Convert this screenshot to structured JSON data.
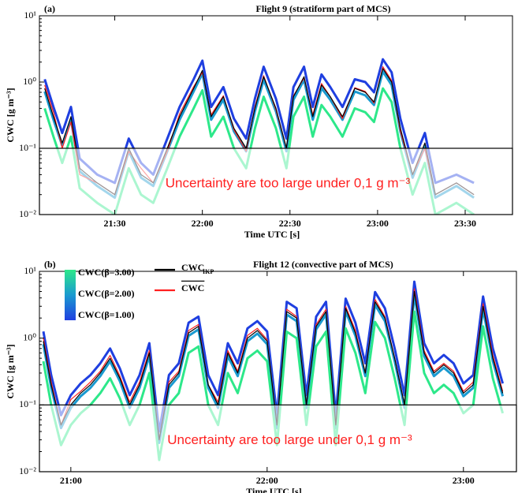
{
  "chart_data": [
    {
      "type": "line",
      "panel": "(a)",
      "title": "Flight 9  (stratiform part of MCS)",
      "xlabel": "Time UTC [s]",
      "ylabel": "CWC [g m⁻³]",
      "annotation": "Uncertainty are too large under 0,1 g  m⁻³",
      "threshold": 0.1,
      "yscale": "log",
      "legend": false,
      "xlim": [
        21.07,
        23.77
      ],
      "xticks": [
        {
          "value": 21.5,
          "label": "21:30"
        },
        {
          "value": 22.0,
          "label": "22:00"
        },
        {
          "value": 22.5,
          "label": "22:30"
        },
        {
          "value": 23.0,
          "label": "23:00"
        },
        {
          "value": 23.5,
          "label": "23:30"
        }
      ],
      "ylim": [
        0.01,
        10
      ],
      "yticks": [
        {
          "value": 0.01,
          "label": "10⁻²"
        },
        {
          "value": 0.1,
          "label": "10⁻¹"
        },
        {
          "value": 1,
          "label": "10⁰"
        },
        {
          "value": 10,
          "label": "10¹"
        }
      ],
      "x": [
        21.1,
        21.15,
        21.2,
        21.25,
        21.3,
        21.4,
        21.5,
        21.58,
        21.65,
        21.72,
        21.8,
        21.87,
        21.95,
        22.0,
        22.05,
        22.12,
        22.18,
        22.25,
        22.3,
        22.35,
        22.42,
        22.48,
        22.52,
        22.58,
        22.63,
        22.68,
        22.73,
        22.8,
        22.87,
        22.93,
        22.98,
        23.03,
        23.08,
        23.13,
        23.2,
        23.27,
        23.33,
        23.45,
        23.55
      ],
      "series": [
        {
          "color": "#1f3fe0",
          "width": 3,
          "values": [
            1.1,
            0.42,
            0.17,
            0.42,
            0.07,
            0.04,
            0.03,
            0.14,
            0.06,
            0.04,
            0.14,
            0.42,
            1.1,
            2.1,
            0.42,
            0.84,
            0.28,
            0.14,
            0.56,
            1.7,
            0.56,
            0.14,
            0.84,
            1.7,
            0.42,
            1.3,
            0.84,
            0.42,
            1.1,
            1.0,
            0.7,
            2.2,
            1.4,
            0.28,
            0.06,
            0.17,
            0.03,
            0.04,
            0.03
          ]
        },
        {
          "color": "#1a9ad0",
          "width": 3,
          "values": [
            0.72,
            0.27,
            0.11,
            0.27,
            0.045,
            0.027,
            0.018,
            0.09,
            0.036,
            0.027,
            0.09,
            0.27,
            0.72,
            1.35,
            0.27,
            0.54,
            0.18,
            0.09,
            0.36,
            1.08,
            0.36,
            0.09,
            0.54,
            1.08,
            0.27,
            0.81,
            0.54,
            0.27,
            0.72,
            0.63,
            0.45,
            1.44,
            0.9,
            0.18,
            0.036,
            0.108,
            0.018,
            0.027,
            0.018
          ]
        },
        {
          "color": "#2de88a",
          "width": 3,
          "values": [
            0.4,
            0.15,
            0.06,
            0.15,
            0.025,
            0.015,
            0.01,
            0.05,
            0.02,
            0.015,
            0.05,
            0.15,
            0.4,
            0.75,
            0.15,
            0.3,
            0.1,
            0.05,
            0.2,
            0.6,
            0.2,
            0.05,
            0.3,
            0.6,
            0.15,
            0.45,
            0.3,
            0.15,
            0.4,
            0.35,
            0.25,
            0.8,
            0.5,
            0.1,
            0.02,
            0.06,
            0.01,
            0.015,
            0.01
          ]
        },
        {
          "color": "#ff2020",
          "width": 1.2,
          "values": [
            0.9,
            0.35,
            0.1,
            0.25,
            0.04,
            0.03,
            0.02,
            0.09,
            0.05,
            0.03,
            0.09,
            0.33,
            0.85,
            1.4,
            0.32,
            0.62,
            0.19,
            0.09,
            0.42,
            1.25,
            0.38,
            0.1,
            0.62,
            1.15,
            0.32,
            0.95,
            0.6,
            0.28,
            0.82,
            0.72,
            0.48,
            1.7,
            1.05,
            0.18,
            0.04,
            0.1,
            0.02,
            0.03,
            0.02
          ]
        },
        {
          "color": "#000000",
          "width": 1.2,
          "values": [
            0.8,
            0.3,
            0.12,
            0.3,
            0.05,
            0.03,
            0.02,
            0.1,
            0.04,
            0.03,
            0.1,
            0.3,
            0.8,
            1.5,
            0.3,
            0.6,
            0.2,
            0.1,
            0.4,
            1.2,
            0.4,
            0.1,
            0.6,
            1.2,
            0.3,
            0.9,
            0.6,
            0.3,
            0.8,
            0.7,
            0.5,
            1.6,
            1.0,
            0.2,
            0.04,
            0.12,
            0.02,
            0.03,
            0.02
          ]
        }
      ]
    },
    {
      "type": "line",
      "panel": "(b)",
      "title": "Flight 12  (convective part of MCS)",
      "xlabel": "Time UTC [s]",
      "ylabel": "CWC [g m⁻³]",
      "annotation": "Uncertainty are too large under 0,1 g  m⁻³",
      "threshold": 0.1,
      "yscale": "log",
      "legend": true,
      "xlim": [
        20.84,
        23.27
      ],
      "xticks": [
        {
          "value": 21.0,
          "label": "21:00"
        },
        {
          "value": 22.0,
          "label": "22:00"
        },
        {
          "value": 23.0,
          "label": "23:00"
        }
      ],
      "ylim": [
        0.01,
        10
      ],
      "yticks": [
        {
          "value": 0.01,
          "label": "10⁻²"
        },
        {
          "value": 0.1,
          "label": "10⁻¹"
        },
        {
          "value": 1,
          "label": "10⁰"
        },
        {
          "value": 10,
          "label": "10¹"
        }
      ],
      "x": [
        20.86,
        20.9,
        20.95,
        21.0,
        21.05,
        21.1,
        21.15,
        21.2,
        21.25,
        21.3,
        21.35,
        21.4,
        21.45,
        21.5,
        21.55,
        21.6,
        21.65,
        21.7,
        21.75,
        21.8,
        21.85,
        21.9,
        21.95,
        22.0,
        22.05,
        22.1,
        22.15,
        22.2,
        22.25,
        22.3,
        22.35,
        22.4,
        22.45,
        22.5,
        22.55,
        22.6,
        22.65,
        22.7,
        22.75,
        22.8,
        22.85,
        22.9,
        22.95,
        23.0,
        23.05,
        23.1,
        23.15,
        23.2
      ],
      "series": [
        {
          "name": "CWC(β=1.00)",
          "color": "#1f3fe0",
          "width": 3,
          "values": [
            1.26,
            0.28,
            0.07,
            0.14,
            0.21,
            0.28,
            0.42,
            0.7,
            0.35,
            0.14,
            0.28,
            0.84,
            0.04,
            0.28,
            0.42,
            1.7,
            2.1,
            0.28,
            0.14,
            0.84,
            0.42,
            1.4,
            1.8,
            1.26,
            0.07,
            3.5,
            2.8,
            0.14,
            2.1,
            3.5,
            0.07,
            3.9,
            1.7,
            0.42,
            4.9,
            2.8,
            0.7,
            0.14,
            7.0,
            0.84,
            0.42,
            0.56,
            0.42,
            0.21,
            0.28,
            4.2,
            0.7,
            0.21
          ]
        },
        {
          "name": "CWC(β=2.00)",
          "color": "#1a9ad0",
          "width": 3,
          "values": [
            0.81,
            0.18,
            0.045,
            0.09,
            0.135,
            0.18,
            0.27,
            0.45,
            0.225,
            0.09,
            0.18,
            0.54,
            0.027,
            0.18,
            0.27,
            1.08,
            1.35,
            0.18,
            0.09,
            0.54,
            0.27,
            0.9,
            1.17,
            0.81,
            0.045,
            2.25,
            1.8,
            0.09,
            1.35,
            2.25,
            0.045,
            2.52,
            1.08,
            0.27,
            3.15,
            1.8,
            0.45,
            0.09,
            4.5,
            0.54,
            0.27,
            0.36,
            0.27,
            0.135,
            0.18,
            2.7,
            0.45,
            0.135
          ]
        },
        {
          "name": "CWC(β=3.00)",
          "color": "#2de88a",
          "width": 3,
          "values": [
            0.45,
            0.1,
            0.025,
            0.05,
            0.075,
            0.1,
            0.15,
            0.25,
            0.125,
            0.05,
            0.1,
            0.3,
            0.015,
            0.1,
            0.15,
            0.6,
            0.75,
            0.1,
            0.05,
            0.3,
            0.15,
            0.5,
            0.65,
            0.45,
            0.025,
            1.25,
            1.0,
            0.05,
            0.75,
            1.25,
            0.025,
            1.4,
            0.6,
            0.15,
            1.75,
            1.0,
            0.25,
            0.05,
            2.5,
            0.3,
            0.15,
            0.2,
            0.15,
            0.075,
            0.1,
            1.5,
            0.25,
            0.075
          ]
        },
        {
          "name": "CWC",
          "overline": true,
          "color": "#ff2020",
          "width": 1.2,
          "values": [
            1.0,
            0.22,
            0.05,
            0.12,
            0.16,
            0.22,
            0.32,
            0.55,
            0.27,
            0.11,
            0.22,
            0.65,
            0.03,
            0.22,
            0.32,
            1.3,
            1.6,
            0.2,
            0.11,
            0.65,
            0.32,
            1.1,
            1.4,
            0.95,
            0.05,
            2.7,
            2.1,
            0.1,
            1.6,
            2.7,
            0.05,
            3.0,
            1.3,
            0.3,
            3.8,
            2.1,
            0.5,
            0.1,
            5.5,
            0.65,
            0.32,
            0.42,
            0.32,
            0.16,
            0.22,
            3.3,
            0.55,
            0.16
          ]
        },
        {
          "name": "CWC",
          "subscript": "IKP",
          "color": "#000000",
          "width": 1.2,
          "values": [
            0.9,
            0.2,
            0.05,
            0.1,
            0.15,
            0.2,
            0.3,
            0.5,
            0.25,
            0.1,
            0.2,
            0.6,
            0.03,
            0.2,
            0.3,
            1.2,
            1.5,
            0.2,
            0.1,
            0.6,
            0.3,
            1.0,
            1.3,
            0.9,
            0.05,
            2.5,
            2.0,
            0.1,
            1.5,
            2.5,
            0.05,
            2.8,
            1.2,
            0.3,
            3.5,
            2.0,
            0.5,
            0.1,
            5.0,
            0.6,
            0.3,
            0.4,
            0.3,
            0.15,
            0.2,
            3.0,
            0.5,
            0.15
          ]
        }
      ]
    }
  ]
}
